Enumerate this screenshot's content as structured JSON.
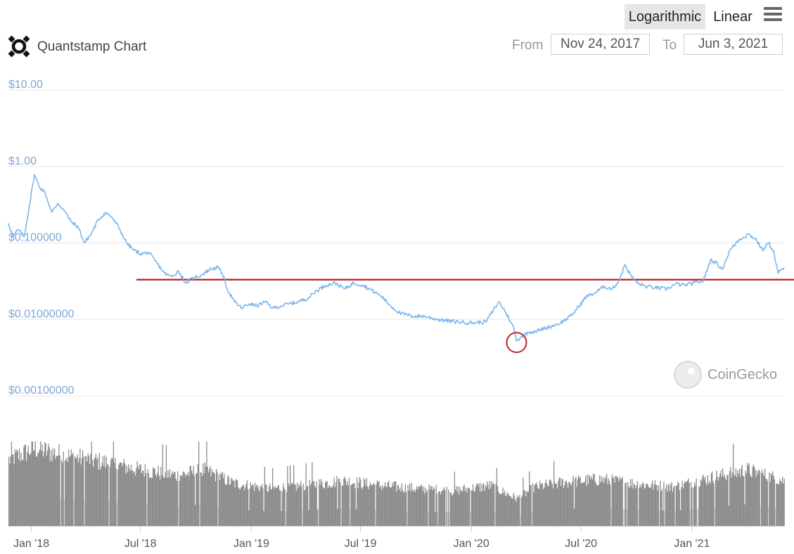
{
  "toolbar": {
    "scale_options": [
      "Logarithmic",
      "Linear"
    ],
    "active_scale": "Logarithmic",
    "menu_icon": "hamburger-menu-icon"
  },
  "header": {
    "title": "Quantstamp Chart",
    "logo_icon": "quantstamp-logo-icon",
    "from_label": "From",
    "from_value": "Nov 24, 2017",
    "to_label": "To",
    "to_value": "Jun 3, 2021"
  },
  "watermark": "CoinGecko",
  "colors": {
    "price_line": "#7cb5ec",
    "support_line": "#c0272d",
    "highlight_circle": "#c0272d",
    "volume": "#8c8c8c",
    "grid": "#e6e6e6"
  },
  "chart_data": {
    "type": "line",
    "y_scale": "log",
    "ylim": [
      0.001,
      10
    ],
    "xlim": [
      "2017-11-24",
      "2021-06-03"
    ],
    "y_ticks": [
      {
        "value": 10,
        "label": "$10.00"
      },
      {
        "value": 1,
        "label": "$1.00"
      },
      {
        "value": 0.1,
        "label": "$0.100000"
      },
      {
        "value": 0.01,
        "label": "$0.01000000"
      },
      {
        "value": 0.001,
        "label": "$0.00100000"
      }
    ],
    "x_ticks": [
      {
        "date": "2018-01-01",
        "label": "Jan '18"
      },
      {
        "date": "2018-07-01",
        "label": "Jul '18"
      },
      {
        "date": "2019-01-01",
        "label": "Jan '19"
      },
      {
        "date": "2019-07-01",
        "label": "Jul '19"
      },
      {
        "date": "2020-01-01",
        "label": "Jan '20"
      },
      {
        "date": "2020-07-01",
        "label": "Jul '20"
      },
      {
        "date": "2021-01-01",
        "label": "Jan '21"
      }
    ],
    "price_series": [
      [
        "2017-11-24",
        0.18
      ],
      [
        "2017-12-02",
        0.12
      ],
      [
        "2017-12-10",
        0.15
      ],
      [
        "2017-12-20",
        0.12
      ],
      [
        "2017-12-28",
        0.28
      ],
      [
        "2018-01-06",
        0.78
      ],
      [
        "2018-01-14",
        0.55
      ],
      [
        "2018-01-24",
        0.45
      ],
      [
        "2018-02-04",
        0.25
      ],
      [
        "2018-02-14",
        0.33
      ],
      [
        "2018-02-24",
        0.27
      ],
      [
        "2018-03-08",
        0.19
      ],
      [
        "2018-03-20",
        0.16
      ],
      [
        "2018-03-30",
        0.1
      ],
      [
        "2018-04-10",
        0.13
      ],
      [
        "2018-04-22",
        0.2
      ],
      [
        "2018-05-04",
        0.25
      ],
      [
        "2018-05-14",
        0.22
      ],
      [
        "2018-05-26",
        0.16
      ],
      [
        "2018-06-08",
        0.1
      ],
      [
        "2018-06-20",
        0.08
      ],
      [
        "2018-07-02",
        0.072
      ],
      [
        "2018-07-14",
        0.075
      ],
      [
        "2018-07-28",
        0.055
      ],
      [
        "2018-08-10",
        0.04
      ],
      [
        "2018-08-22",
        0.036
      ],
      [
        "2018-09-02",
        0.043
      ],
      [
        "2018-09-14",
        0.03
      ],
      [
        "2018-09-28",
        0.035
      ],
      [
        "2018-10-10",
        0.038
      ],
      [
        "2018-10-24",
        0.045
      ],
      [
        "2018-11-06",
        0.048
      ],
      [
        "2018-11-14",
        0.04
      ],
      [
        "2018-11-22",
        0.025
      ],
      [
        "2018-12-04",
        0.017
      ],
      [
        "2018-12-16",
        0.014
      ],
      [
        "2018-12-28",
        0.016
      ],
      [
        "2019-01-10",
        0.015
      ],
      [
        "2019-01-24",
        0.017
      ],
      [
        "2019-02-06",
        0.014
      ],
      [
        "2019-02-20",
        0.015
      ],
      [
        "2019-03-05",
        0.016
      ],
      [
        "2019-03-20",
        0.017
      ],
      [
        "2019-04-05",
        0.019
      ],
      [
        "2019-04-20",
        0.024
      ],
      [
        "2019-05-05",
        0.028
      ],
      [
        "2019-05-20",
        0.03
      ],
      [
        "2019-06-05",
        0.025
      ],
      [
        "2019-06-20",
        0.03
      ],
      [
        "2019-07-05",
        0.028
      ],
      [
        "2019-07-20",
        0.024
      ],
      [
        "2019-08-05",
        0.02
      ],
      [
        "2019-08-20",
        0.015
      ],
      [
        "2019-09-05",
        0.012
      ],
      [
        "2019-09-25",
        0.011
      ],
      [
        "2019-10-15",
        0.011
      ],
      [
        "2019-11-05",
        0.01
      ],
      [
        "2019-11-25",
        0.0095
      ],
      [
        "2019-12-15",
        0.0092
      ],
      [
        "2020-01-05",
        0.009
      ],
      [
        "2020-01-25",
        0.0093
      ],
      [
        "2020-02-06",
        0.013
      ],
      [
        "2020-02-16",
        0.017
      ],
      [
        "2020-02-28",
        0.012
      ],
      [
        "2020-03-12",
        0.0075
      ],
      [
        "2020-03-16",
        0.0052
      ],
      [
        "2020-03-24",
        0.006
      ],
      [
        "2020-04-06",
        0.0068
      ],
      [
        "2020-04-22",
        0.0072
      ],
      [
        "2020-05-10",
        0.008
      ],
      [
        "2020-05-28",
        0.009
      ],
      [
        "2020-06-14",
        0.011
      ],
      [
        "2020-06-28",
        0.015
      ],
      [
        "2020-07-10",
        0.02
      ],
      [
        "2020-07-24",
        0.022
      ],
      [
        "2020-08-08",
        0.027
      ],
      [
        "2020-08-22",
        0.025
      ],
      [
        "2020-09-02",
        0.032
      ],
      [
        "2020-09-12",
        0.052
      ],
      [
        "2020-09-22",
        0.037
      ],
      [
        "2020-10-02",
        0.03
      ],
      [
        "2020-10-16",
        0.027
      ],
      [
        "2020-11-01",
        0.026
      ],
      [
        "2020-11-20",
        0.025
      ],
      [
        "2020-12-05",
        0.029
      ],
      [
        "2020-12-20",
        0.028
      ],
      [
        "2021-01-05",
        0.03
      ],
      [
        "2021-01-20",
        0.032
      ],
      [
        "2021-02-01",
        0.06
      ],
      [
        "2021-02-10",
        0.055
      ],
      [
        "2021-02-20",
        0.045
      ],
      [
        "2021-03-05",
        0.08
      ],
      [
        "2021-03-20",
        0.11
      ],
      [
        "2021-04-05",
        0.13
      ],
      [
        "2021-04-18",
        0.11
      ],
      [
        "2021-04-28",
        0.08
      ],
      [
        "2021-05-08",
        0.1
      ],
      [
        "2021-05-16",
        0.08
      ],
      [
        "2021-05-24",
        0.04
      ],
      [
        "2021-05-30",
        0.045
      ],
      [
        "2021-06-03",
        0.047
      ]
    ],
    "support_line": {
      "value": 0.033
    },
    "highlighted_low": {
      "date": "2020-03-16",
      "value": 0.0052
    },
    "volume_series": [
      [
        "2017-11-24",
        0.85
      ],
      [
        "2018-01-06",
        1.0
      ],
      [
        "2018-03-01",
        0.9
      ],
      [
        "2018-05-01",
        0.82
      ],
      [
        "2018-07-01",
        0.72
      ],
      [
        "2018-09-01",
        0.65
      ],
      [
        "2018-10-15",
        0.72
      ],
      [
        "2018-12-01",
        0.55
      ],
      [
        "2019-02-01",
        0.48
      ],
      [
        "2019-04-01",
        0.52
      ],
      [
        "2019-06-01",
        0.58
      ],
      [
        "2019-08-01",
        0.52
      ],
      [
        "2019-10-01",
        0.48
      ],
      [
        "2019-12-01",
        0.45
      ],
      [
        "2020-02-01",
        0.52
      ],
      [
        "2020-03-16",
        0.35
      ],
      [
        "2020-04-15",
        0.5
      ],
      [
        "2020-06-01",
        0.56
      ],
      [
        "2020-08-01",
        0.6
      ],
      [
        "2020-10-01",
        0.54
      ],
      [
        "2020-12-01",
        0.5
      ],
      [
        "2021-02-01",
        0.62
      ],
      [
        "2021-04-01",
        0.72
      ],
      [
        "2021-06-03",
        0.58
      ]
    ]
  }
}
